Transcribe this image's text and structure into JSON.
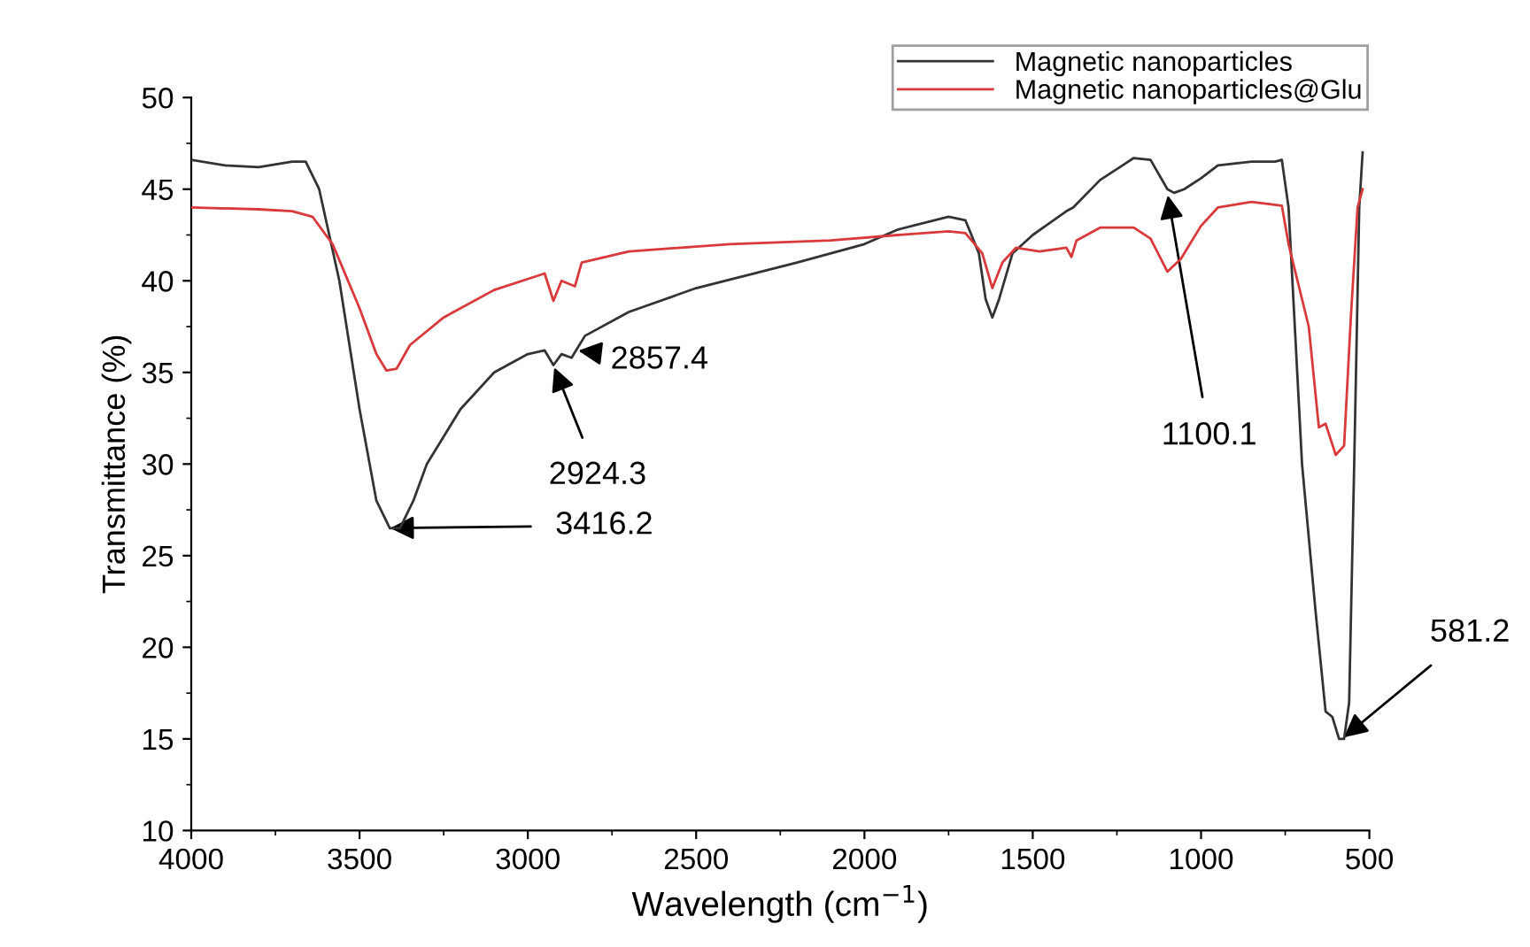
{
  "chart_data": {
    "type": "line",
    "xlabel": "Wavelength (cm$^{−1}$)",
    "ylabel": "Transmittance (%)",
    "xlim": [
      4000,
      500
    ],
    "xticks": [
      4000,
      3500,
      3000,
      2500,
      2000,
      1500,
      1000,
      500
    ],
    "ylim": [
      10,
      50
    ],
    "yticks": [
      10,
      15,
      20,
      25,
      30,
      35,
      40,
      45,
      50
    ],
    "grid": false,
    "legend": "top right",
    "marker": "none",
    "line_style": "solid",
    "series": [
      {
        "name": "Magnetic nanoparticles",
        "color": "#333333",
        "x": [
          4000,
          3900,
          3800,
          3700,
          3660,
          3620,
          3560,
          3500,
          3450,
          3410,
          3380,
          3340,
          3300,
          3200,
          3100,
          3000,
          2950,
          2924,
          2900,
          2870,
          2857,
          2830,
          2700,
          2500,
          2200,
          2000,
          1900,
          1750,
          1700,
          1660,
          1640,
          1620,
          1600,
          1560,
          1500,
          1400,
          1380,
          1300,
          1200,
          1150,
          1100,
          1080,
          1050,
          1000,
          950,
          850,
          780,
          760,
          740,
          700,
          660,
          630,
          610,
          590,
          575,
          560,
          545,
          530,
          520
        ],
        "values": [
          46.6,
          46.3,
          46.2,
          46.5,
          46.5,
          45,
          40,
          33,
          28,
          26.5,
          26.5,
          28,
          30,
          33,
          35,
          36,
          36.2,
          35.4,
          36,
          35.8,
          36.2,
          37,
          38.3,
          39.6,
          41,
          42,
          42.8,
          43.5,
          43.3,
          41.5,
          39,
          38,
          39,
          41.5,
          42.5,
          43.8,
          44,
          45.5,
          46.7,
          46.6,
          45,
          44.8,
          45,
          45.6,
          46.3,
          46.5,
          46.5,
          46.6,
          44,
          30,
          22,
          16.5,
          16.2,
          15,
          15,
          17,
          30,
          44,
          47
        ]
      },
      {
        "name": "Magnetic nanoparticles@Glu",
        "color": "#d9393b",
        "x": [
          4000,
          3800,
          3700,
          3640,
          3580,
          3500,
          3450,
          3420,
          3390,
          3350,
          3250,
          3100,
          2950,
          2924,
          2900,
          2860,
          2840,
          2700,
          2400,
          2100,
          1900,
          1750,
          1700,
          1650,
          1620,
          1590,
          1550,
          1480,
          1400,
          1385,
          1370,
          1300,
          1200,
          1150,
          1100,
          1060,
          1000,
          950,
          850,
          760,
          740,
          700,
          680,
          650,
          630,
          600,
          575,
          555,
          535,
          520
        ],
        "values": [
          44,
          43.9,
          43.8,
          43.5,
          42,
          38.5,
          36,
          35.1,
          35.2,
          36.5,
          38,
          39.5,
          40.4,
          38.9,
          40,
          39.7,
          41,
          41.6,
          42,
          42.2,
          42.5,
          42.7,
          42.6,
          41.5,
          39.6,
          41,
          41.8,
          41.6,
          41.8,
          41.3,
          42.2,
          42.9,
          42.9,
          42.3,
          40.5,
          41.2,
          43,
          44,
          44.3,
          44.1,
          42,
          39,
          37.5,
          32,
          32.2,
          30.5,
          31,
          38,
          44,
          45
        ]
      }
    ],
    "annotations": [
      {
        "text": "3416.2",
        "x": 3416.2,
        "y": 26.5
      },
      {
        "text": "2924.3",
        "x": 2924.3,
        "y": 35.4
      },
      {
        "text": "2857.4",
        "x": 2857.4,
        "y": 36.2
      },
      {
        "text": "1100.1",
        "x": 1100.1,
        "y": 44.8
      },
      {
        "text": "581.2",
        "x": 581.2,
        "y": 15
      }
    ]
  }
}
